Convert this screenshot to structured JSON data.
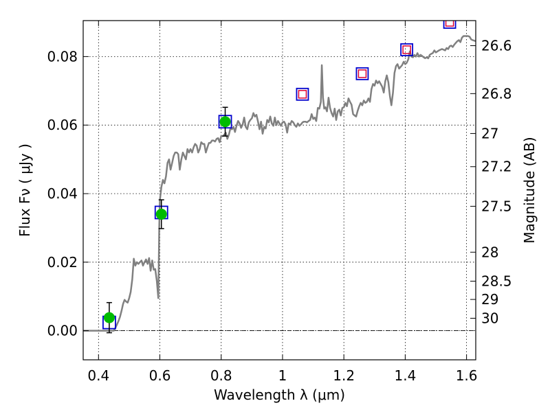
{
  "chart_data": {
    "type": "line",
    "xlabel": "Wavelength  λ (μm)",
    "ylabel": "Flux  Fν  ( μJy )",
    "y2label": "Magnitude (AB)",
    "xlim": [
      0.35,
      1.63
    ],
    "ylim": [
      -0.0085,
      0.0905
    ],
    "x_ticks": [
      0.4,
      0.6,
      0.8,
      1.0,
      1.2,
      1.4,
      1.6
    ],
    "x_tick_labels": [
      "0.4",
      "0.6",
      "0.8",
      "1",
      "1.2",
      "1.4",
      "1.6"
    ],
    "y_ticks": [
      0.0,
      0.02,
      0.04,
      0.06,
      0.08
    ],
    "y_tick_labels": [
      "0.00",
      "0.02",
      "0.04",
      "0.06",
      "0.08"
    ],
    "mag_ticks": [
      26.6,
      26.8,
      27,
      27.2,
      27.5,
      28,
      28.5,
      29,
      30
    ],
    "mag_tick_labels": [
      "26.6",
      "26.8",
      "27",
      "27.2",
      "27.5",
      "28",
      "28.5",
      "29",
      "30"
    ],
    "grid": true,
    "colors": {
      "model": "#808080",
      "observed_fill": "#00bb00",
      "model_box": "#0000cc",
      "upper_box": "#dd0033",
      "errorbar": "#000000"
    },
    "model_spectrum": [
      [
        0.35,
        0.0
      ],
      [
        0.45,
        0.0
      ],
      [
        0.455,
        0.0008
      ],
      [
        0.46,
        0.0018
      ],
      [
        0.465,
        0.0028
      ],
      [
        0.47,
        0.004
      ],
      [
        0.475,
        0.0058
      ],
      [
        0.48,
        0.0078
      ],
      [
        0.485,
        0.009
      ],
      [
        0.49,
        0.0085
      ],
      [
        0.495,
        0.0082
      ],
      [
        0.5,
        0.0095
      ],
      [
        0.505,
        0.0113
      ],
      [
        0.51,
        0.015
      ],
      [
        0.515,
        0.021
      ],
      [
        0.52,
        0.019
      ],
      [
        0.525,
        0.02
      ],
      [
        0.53,
        0.0195
      ],
      [
        0.535,
        0.02
      ],
      [
        0.54,
        0.0205
      ],
      [
        0.545,
        0.019
      ],
      [
        0.55,
        0.02
      ],
      [
        0.555,
        0.0208
      ],
      [
        0.56,
        0.0195
      ],
      [
        0.565,
        0.0212
      ],
      [
        0.57,
        0.0175
      ],
      [
        0.575,
        0.0205
      ],
      [
        0.58,
        0.0178
      ],
      [
        0.585,
        0.018
      ],
      [
        0.59,
        0.0145
      ],
      [
        0.595,
        0.0095
      ],
      [
        0.598,
        0.03
      ],
      [
        0.6,
        0.038
      ],
      [
        0.605,
        0.042
      ],
      [
        0.61,
        0.044
      ],
      [
        0.615,
        0.043
      ],
      [
        0.62,
        0.045
      ],
      [
        0.625,
        0.049
      ],
      [
        0.63,
        0.05
      ],
      [
        0.635,
        0.047
      ],
      [
        0.64,
        0.049
      ],
      [
        0.645,
        0.051
      ],
      [
        0.65,
        0.052
      ],
      [
        0.655,
        0.052
      ],
      [
        0.66,
        0.0515
      ],
      [
        0.665,
        0.047
      ],
      [
        0.67,
        0.05
      ],
      [
        0.675,
        0.052
      ],
      [
        0.68,
        0.051
      ],
      [
        0.685,
        0.05
      ],
      [
        0.69,
        0.053
      ],
      [
        0.695,
        0.052
      ],
      [
        0.7,
        0.053
      ],
      [
        0.705,
        0.052
      ],
      [
        0.71,
        0.0535
      ],
      [
        0.715,
        0.0545
      ],
      [
        0.72,
        0.054
      ],
      [
        0.725,
        0.052
      ],
      [
        0.73,
        0.053
      ],
      [
        0.735,
        0.055
      ],
      [
        0.74,
        0.0545
      ],
      [
        0.745,
        0.0545
      ],
      [
        0.75,
        0.052
      ],
      [
        0.755,
        0.0535
      ],
      [
        0.76,
        0.0548
      ],
      [
        0.765,
        0.0548
      ],
      [
        0.77,
        0.0555
      ],
      [
        0.775,
        0.0555
      ],
      [
        0.78,
        0.0552
      ],
      [
        0.785,
        0.056
      ],
      [
        0.79,
        0.0562
      ],
      [
        0.795,
        0.055
      ],
      [
        0.8,
        0.0568
      ],
      [
        0.805,
        0.0568
      ],
      [
        0.81,
        0.0572
      ],
      [
        0.815,
        0.0578
      ],
      [
        0.82,
        0.056
      ],
      [
        0.825,
        0.0572
      ],
      [
        0.83,
        0.059
      ],
      [
        0.835,
        0.0588
      ],
      [
        0.84,
        0.0595
      ],
      [
        0.845,
        0.058
      ],
      [
        0.85,
        0.0598
      ],
      [
        0.855,
        0.0612
      ],
      [
        0.86,
        0.0605
      ],
      [
        0.865,
        0.0592
      ],
      [
        0.87,
        0.0602
      ],
      [
        0.875,
        0.0622
      ],
      [
        0.88,
        0.0595
      ],
      [
        0.885,
        0.0588
      ],
      [
        0.89,
        0.0608
      ],
      [
        0.895,
        0.0615
      ],
      [
        0.9,
        0.062
      ],
      [
        0.905,
        0.0635
      ],
      [
        0.91,
        0.0625
      ],
      [
        0.915,
        0.063
      ],
      [
        0.92,
        0.061
      ],
      [
        0.925,
        0.0588
      ],
      [
        0.93,
        0.061
      ],
      [
        0.935,
        0.0575
      ],
      [
        0.94,
        0.0595
      ],
      [
        0.945,
        0.059
      ],
      [
        0.95,
        0.0615
      ],
      [
        0.955,
        0.0608
      ],
      [
        0.96,
        0.0625
      ],
      [
        0.965,
        0.0605
      ],
      [
        0.97,
        0.0598
      ],
      [
        0.975,
        0.0622
      ],
      [
        0.98,
        0.06
      ],
      [
        0.985,
        0.0612
      ],
      [
        0.99,
        0.0605
      ],
      [
        0.995,
        0.0598
      ],
      [
        1.0,
        0.0608
      ],
      [
        1.005,
        0.061
      ],
      [
        1.01,
        0.0602
      ],
      [
        1.015,
        0.0578
      ],
      [
        1.02,
        0.0605
      ],
      [
        1.025,
        0.0602
      ],
      [
        1.03,
        0.0612
      ],
      [
        1.035,
        0.0608
      ],
      [
        1.04,
        0.06
      ],
      [
        1.045,
        0.0595
      ],
      [
        1.05,
        0.0605
      ],
      [
        1.055,
        0.0598
      ],
      [
        1.06,
        0.0602
      ],
      [
        1.065,
        0.0608
      ],
      [
        1.07,
        0.061
      ],
      [
        1.075,
        0.061
      ],
      [
        1.08,
        0.0608
      ],
      [
        1.085,
        0.0612
      ],
      [
        1.09,
        0.0615
      ],
      [
        1.095,
        0.0632
      ],
      [
        1.1,
        0.0618
      ],
      [
        1.105,
        0.0622
      ],
      [
        1.11,
        0.0612
      ],
      [
        1.115,
        0.065
      ],
      [
        1.12,
        0.0648
      ],
      [
        1.125,
        0.0668
      ],
      [
        1.128,
        0.0775
      ],
      [
        1.132,
        0.068
      ],
      [
        1.136,
        0.0648
      ],
      [
        1.14,
        0.0652
      ],
      [
        1.145,
        0.064
      ],
      [
        1.15,
        0.068
      ],
      [
        1.155,
        0.065
      ],
      [
        1.16,
        0.0635
      ],
      [
        1.165,
        0.0625
      ],
      [
        1.17,
        0.0648
      ],
      [
        1.175,
        0.0615
      ],
      [
        1.18,
        0.064
      ],
      [
        1.185,
        0.0645
      ],
      [
        1.19,
        0.0628
      ],
      [
        1.195,
        0.065
      ],
      [
        1.2,
        0.0652
      ],
      [
        1.205,
        0.0665
      ],
      [
        1.21,
        0.0655
      ],
      [
        1.215,
        0.0678
      ],
      [
        1.22,
        0.0668
      ],
      [
        1.225,
        0.066
      ],
      [
        1.23,
        0.0632
      ],
      [
        1.235,
        0.0628
      ],
      [
        1.24,
        0.0625
      ],
      [
        1.245,
        0.0642
      ],
      [
        1.25,
        0.0655
      ],
      [
        1.255,
        0.0665
      ],
      [
        1.26,
        0.0658
      ],
      [
        1.265,
        0.0672
      ],
      [
        1.27,
        0.0665
      ],
      [
        1.275,
        0.0668
      ],
      [
        1.28,
        0.0678
      ],
      [
        1.285,
        0.0668
      ],
      [
        1.29,
        0.0705
      ],
      [
        1.295,
        0.072
      ],
      [
        1.3,
        0.0715
      ],
      [
        1.305,
        0.073
      ],
      [
        1.31,
        0.0722
      ],
      [
        1.315,
        0.0728
      ],
      [
        1.32,
        0.072
      ],
      [
        1.325,
        0.0712
      ],
      [
        1.33,
        0.0695
      ],
      [
        1.335,
        0.0728
      ],
      [
        1.34,
        0.0745
      ],
      [
        1.345,
        0.0725
      ],
      [
        1.35,
        0.0685
      ],
      [
        1.355,
        0.0658
      ],
      [
        1.36,
        0.0695
      ],
      [
        1.365,
        0.0752
      ],
      [
        1.37,
        0.0772
      ],
      [
        1.375,
        0.0778
      ],
      [
        1.38,
        0.0765
      ],
      [
        1.385,
        0.077
      ],
      [
        1.39,
        0.0775
      ],
      [
        1.395,
        0.0785
      ],
      [
        1.4,
        0.0778
      ],
      [
        1.405,
        0.0782
      ],
      [
        1.41,
        0.0792
      ],
      [
        1.415,
        0.0815
      ],
      [
        1.42,
        0.08
      ],
      [
        1.425,
        0.0798
      ],
      [
        1.43,
        0.0805
      ],
      [
        1.435,
        0.08
      ],
      [
        1.44,
        0.081
      ],
      [
        1.445,
        0.08
      ],
      [
        1.45,
        0.0805
      ],
      [
        1.455,
        0.0802
      ],
      [
        1.46,
        0.0798
      ],
      [
        1.465,
        0.0795
      ],
      [
        1.47,
        0.0798
      ],
      [
        1.475,
        0.0795
      ],
      [
        1.48,
        0.0805
      ],
      [
        1.485,
        0.0808
      ],
      [
        1.49,
        0.081
      ],
      [
        1.495,
        0.0818
      ],
      [
        1.5,
        0.0812
      ],
      [
        1.505,
        0.0815
      ],
      [
        1.51,
        0.0818
      ],
      [
        1.515,
        0.082
      ],
      [
        1.52,
        0.0822
      ],
      [
        1.525,
        0.082
      ],
      [
        1.53,
        0.0818
      ],
      [
        1.535,
        0.0825
      ],
      [
        1.54,
        0.0822
      ],
      [
        1.545,
        0.083
      ],
      [
        1.55,
        0.0832
      ],
      [
        1.555,
        0.0828
      ],
      [
        1.56,
        0.0835
      ],
      [
        1.565,
        0.084
      ],
      [
        1.57,
        0.0845
      ],
      [
        1.575,
        0.0848
      ],
      [
        1.58,
        0.0842
      ],
      [
        1.585,
        0.0855
      ],
      [
        1.59,
        0.086
      ],
      [
        1.595,
        0.086
      ],
      [
        1.6,
        0.086
      ],
      [
        1.605,
        0.086
      ],
      [
        1.61,
        0.0858
      ],
      [
        1.615,
        0.085
      ],
      [
        1.62,
        0.0848
      ],
      [
        1.63,
        0.0845
      ]
    ],
    "observed_points": [
      {
        "x": 0.435,
        "y": 0.0038,
        "yerr": 0.0044
      },
      {
        "x": 0.605,
        "y": 0.034,
        "yerr": 0.0042
      },
      {
        "x": 0.813,
        "y": 0.061,
        "yerr": 0.0042
      }
    ],
    "model_photometry": [
      {
        "x": 0.435,
        "y": 0.0024
      },
      {
        "x": 0.605,
        "y": 0.0345
      },
      {
        "x": 0.813,
        "y": 0.061
      }
    ],
    "predicted_points": [
      {
        "x": 1.065,
        "y": 0.069
      },
      {
        "x": 1.26,
        "y": 0.075
      },
      {
        "x": 1.405,
        "y": 0.082
      },
      {
        "x": 1.545,
        "y": 0.09
      }
    ]
  }
}
